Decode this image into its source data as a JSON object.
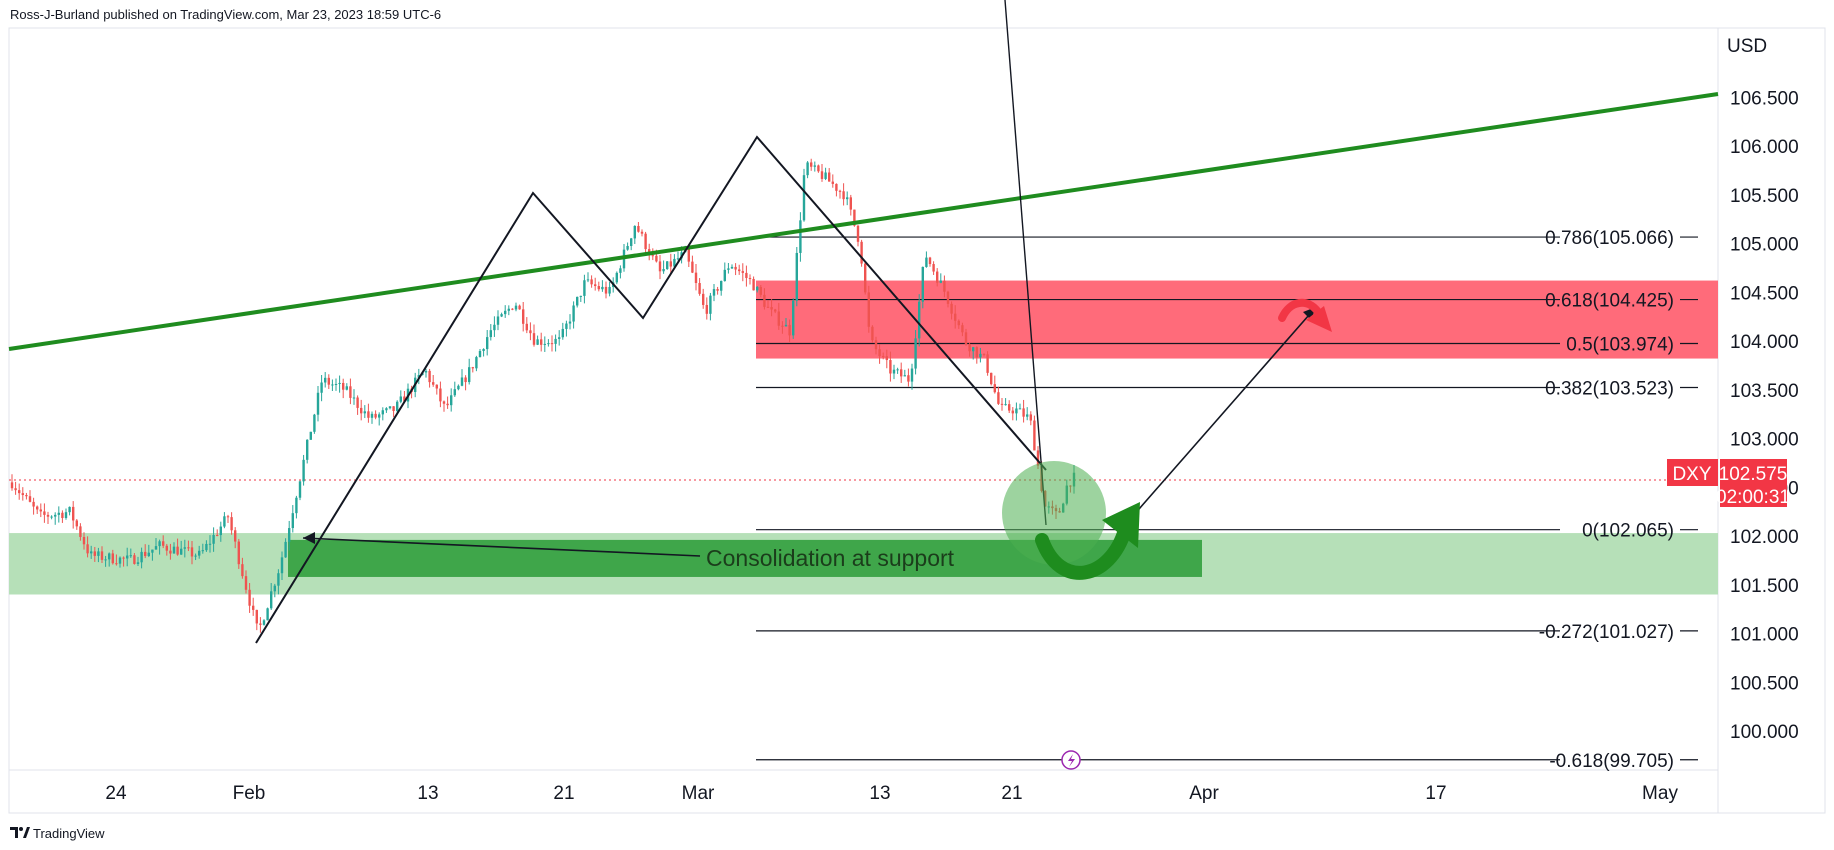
{
  "header": {
    "published_by": "Ross-J-Burland published on TradingView.com, Mar 23, 2023 18:59 UTC-6"
  },
  "footer": {
    "brand": "TradingView"
  },
  "chart_data": {
    "type": "candlestick",
    "symbol": "DXY",
    "currency": "USD",
    "last_price": "102.575",
    "countdown": "02:00:31",
    "ylim": [
      99.5,
      106.85
    ],
    "y_ticks": [
      "100.000",
      "100.500",
      "101.000",
      "101.500",
      "102.000",
      "102.500",
      "103.000",
      "103.500",
      "104.000",
      "104.500",
      "105.000",
      "105.500",
      "106.000",
      "106.500"
    ],
    "x_ticks": [
      "24",
      "Feb",
      "13",
      "21",
      "Mar",
      "13",
      "21",
      "Apr",
      "17",
      "May"
    ],
    "fib_levels": [
      {
        "ratio": "0.786",
        "price": 105.066,
        "label": "0.786(105.066)"
      },
      {
        "ratio": "0.618",
        "price": 104.425,
        "label": "0.618(104.425)"
      },
      {
        "ratio": "0.5",
        "price": 103.974,
        "label": "0.5(103.974)"
      },
      {
        "ratio": "0.382",
        "price": 103.523,
        "label": "0.382(103.523)"
      },
      {
        "ratio": "0",
        "price": 102.065,
        "label": "0(102.065)"
      },
      {
        "ratio": "-0.272",
        "price": 101.027,
        "label": "-0.272(101.027)"
      },
      {
        "ratio": "-0.618",
        "price": 99.705,
        "label": "-0.618(99.705)"
      }
    ],
    "resistance_zone": {
      "low": 103.82,
      "high": 104.62,
      "color": "#ff6b7a"
    },
    "support_zone": {
      "low": 101.4,
      "high": 102.03,
      "color": "#b6e0b8"
    },
    "consolidation_box": {
      "low": 101.58,
      "high": 101.96,
      "color": "#3fa64a"
    },
    "trendline": {
      "color": "#1f8c1f"
    },
    "annotations": [
      "Consolidation at support"
    ],
    "colors": {
      "up": "#26a69a",
      "down": "#ef5350",
      "badge": "#f23645"
    }
  }
}
